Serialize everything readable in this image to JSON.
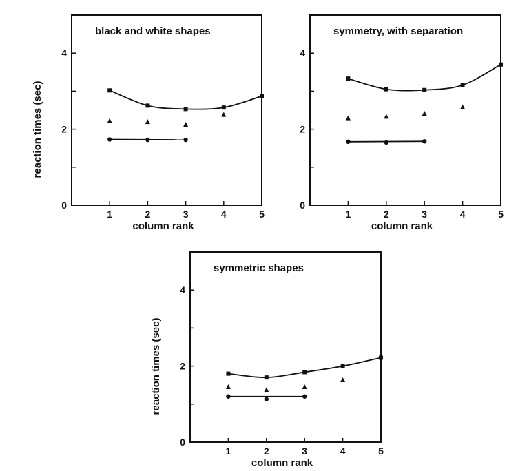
{
  "chart_data": [
    {
      "type": "scatter",
      "title": "black and white shapes",
      "xlabel": "column rank",
      "ylabel": "reaction times (sec)",
      "xlim": [
        0,
        5
      ],
      "ylim": [
        0,
        5
      ],
      "xticks": [
        "1",
        "2",
        "3",
        "4",
        "5"
      ],
      "yticks": [
        "0",
        "2",
        "4"
      ],
      "series": [
        {
          "marker": "square",
          "line": "smooth",
          "x": [
            1,
            2,
            3,
            4,
            5
          ],
          "y": [
            3.02,
            2.62,
            2.53,
            2.57,
            2.87
          ]
        },
        {
          "marker": "triangle",
          "line": "none",
          "x": [
            1,
            2,
            3,
            4
          ],
          "y": [
            2.22,
            2.19,
            2.12,
            2.38
          ]
        },
        {
          "marker": "circle",
          "line": "straight",
          "x": [
            1,
            2,
            3
          ],
          "y": [
            1.73,
            1.72,
            1.72
          ]
        }
      ]
    },
    {
      "type": "scatter",
      "title": "symmetry, with separation",
      "xlabel": "column rank",
      "ylabel": "",
      "xlim": [
        0,
        5
      ],
      "ylim": [
        0,
        5
      ],
      "xticks": [
        "1",
        "2",
        "3",
        "4",
        "5"
      ],
      "yticks": [
        "0",
        "2",
        "4"
      ],
      "series": [
        {
          "marker": "square",
          "line": "smooth",
          "x": [
            1,
            2,
            3,
            4,
            5
          ],
          "y": [
            3.33,
            3.05,
            3.03,
            3.16,
            3.7
          ]
        },
        {
          "marker": "triangle",
          "line": "none",
          "x": [
            1,
            2,
            3,
            4
          ],
          "y": [
            2.29,
            2.33,
            2.41,
            2.58
          ]
        },
        {
          "marker": "circle",
          "line": "straight",
          "x": [
            1,
            2,
            3
          ],
          "y": [
            1.67,
            1.65,
            1.68
          ]
        }
      ]
    },
    {
      "type": "scatter",
      "title": "symmetric shapes",
      "xlabel": "column rank",
      "ylabel": "reaction times (sec)",
      "xlim": [
        0,
        5
      ],
      "ylim": [
        0,
        5
      ],
      "xticks": [
        "1",
        "2",
        "3",
        "4",
        "5"
      ],
      "yticks": [
        "0",
        "2",
        "4"
      ],
      "series": [
        {
          "marker": "square",
          "line": "smooth",
          "x": [
            1,
            2,
            3,
            4,
            5
          ],
          "y": [
            1.8,
            1.7,
            1.84,
            2.0,
            2.22
          ]
        },
        {
          "marker": "triangle",
          "line": "none",
          "x": [
            1,
            2,
            3,
            4
          ],
          "y": [
            1.45,
            1.37,
            1.45,
            1.63
          ]
        },
        {
          "marker": "circle",
          "line": "straight",
          "x": [
            1,
            2,
            3
          ],
          "y": [
            1.2,
            1.13,
            1.2
          ]
        }
      ]
    }
  ]
}
